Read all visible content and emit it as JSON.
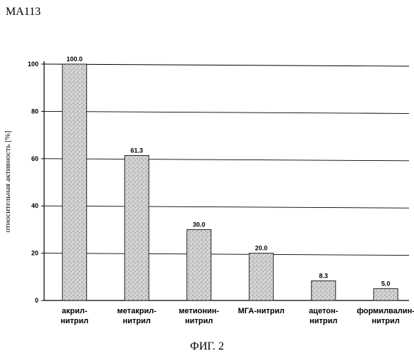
{
  "page_code": "MA113",
  "figure_caption": "ФИГ. 2",
  "colors": {
    "bar_fill": "#c8c8c8",
    "bar_stroke": "#222222",
    "grid": "#000000"
  },
  "chart_data": {
    "type": "bar",
    "title": "",
    "xlabel": "",
    "ylabel": "относительная активность [%]",
    "ylim": [
      0,
      100
    ],
    "yticks": [
      0,
      20,
      40,
      60,
      80,
      100
    ],
    "grid": true,
    "categories": [
      [
        "акрил-",
        "нитрил"
      ],
      [
        "метакрил-",
        "нитрил"
      ],
      [
        "метионин-",
        "нитрил"
      ],
      [
        "МГА-нитрил"
      ],
      [
        "ацетон-",
        "нитрил"
      ],
      [
        "формилвалин-",
        "нитрил"
      ]
    ],
    "values": [
      100.0,
      61.3,
      30.0,
      20.0,
      8.3,
      5.0
    ],
    "value_labels": [
      "100.0",
      "61.3",
      "30.0",
      "20.0",
      "8.3",
      "5.0"
    ]
  }
}
